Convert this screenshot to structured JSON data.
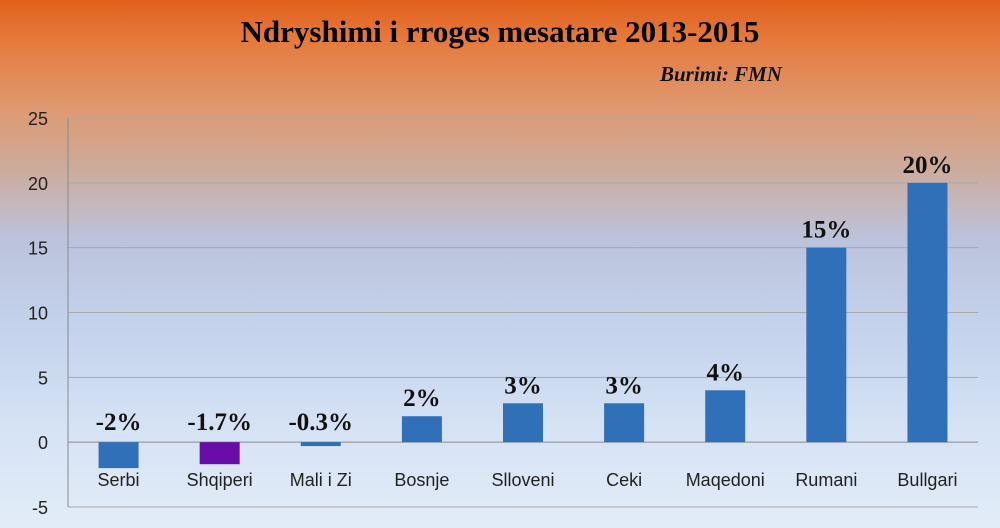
{
  "chart_data": {
    "type": "bar",
    "title": "Ndryshimi i rroges mesatare 2013-2015",
    "subtitle": "Burimi: FMN",
    "categories": [
      "Serbi",
      "Shqiperi",
      "Mali i Zi",
      "Bosnje",
      "Slloveni",
      "Ceki",
      "Maqedoni",
      "Rumani",
      "Bullgari"
    ],
    "values": [
      -2,
      -1.7,
      -0.3,
      2,
      3,
      3,
      4,
      15,
      20
    ],
    "data_labels": [
      "-2%",
      "-1.7%",
      "-0.3%",
      "2%",
      "3%",
      "3%",
      "4%",
      "15%",
      "20%"
    ],
    "ylim": [
      -5,
      25
    ],
    "yticks": [
      -5,
      0,
      5,
      10,
      15,
      20,
      25
    ],
    "grid": true,
    "colors": {
      "bar": "#3070b8",
      "highlight": "#6a0ca8"
    },
    "highlight_index": 1
  }
}
